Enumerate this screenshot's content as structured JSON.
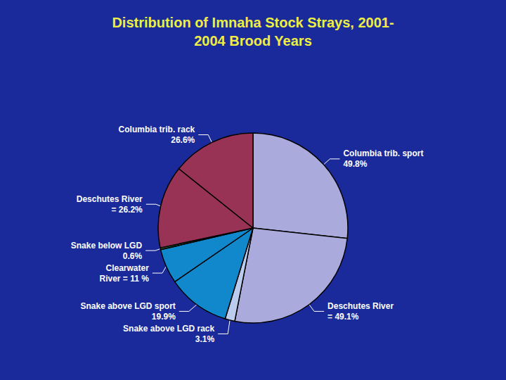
{
  "chart_data": {
    "type": "pie",
    "title": "Distribution of Imnaha Stock Strays, 2001-\n2004 Brood Years",
    "categories": [
      "Columbia trib. sport\n49.8%",
      "Deschutes River\n= 49.1%",
      "Snake above LGD rack\n3.1%",
      "Snake above LGD sport\n19.9%",
      "Clearwater\nRiver = 11 %",
      "Snake below LGD\n0.6%",
      "Deschutes River\n= 26.2%",
      "Columbia trib. rack\n26.6%"
    ],
    "values": [
      49.8,
      49.1,
      3.1,
      19.9,
      11.0,
      0.6,
      26.2,
      26.6
    ],
    "colors": [
      "#AAAADD",
      "#AAAADD",
      "#BBCCEE",
      "#1188CC",
      "#1188CC",
      "#336633",
      "#993355",
      "#993355"
    ],
    "legend": false
  }
}
